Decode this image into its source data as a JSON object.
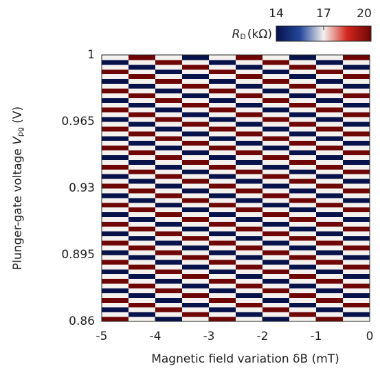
{
  "chart_data": {
    "type": "heatmap",
    "xlabel": "Magnetic field variation δB (mT)",
    "ylabel": {
      "text": "Plunger-gate voltage ",
      "symbol": "V",
      "subscript": "pg",
      "unit": " (V)"
    },
    "colorbar_label": {
      "symbol": "R",
      "subscript": "D",
      "unit": "(kΩ)"
    },
    "xlim": [
      -5,
      0
    ],
    "xticks": [
      -5,
      -4,
      -3,
      -2,
      -1,
      0
    ],
    "ylim": [
      0.86,
      1
    ],
    "yticks": [
      1,
      0.965,
      0.93,
      0.895,
      0.86
    ],
    "zlim": [
      14,
      20
    ],
    "zticks": [
      14,
      17,
      20
    ],
    "colormap": [
      "#07114a",
      "#24479b",
      "#f4f1ee",
      "#d2261c",
      "#6e0606"
    ],
    "x": [
      -4.75,
      -4.25,
      -3.75,
      -3.25,
      -2.75,
      -2.25,
      -1.75,
      -1.25,
      -0.75,
      -0.25
    ],
    "y": [
      0.86125,
      0.86375,
      0.86625,
      0.86875,
      0.87125,
      0.87375,
      0.87625,
      0.87875,
      0.88125,
      0.88375,
      0.88625,
      0.88875,
      0.89125,
      0.89375,
      0.89625,
      0.89875,
      0.90125,
      0.90375,
      0.90625,
      0.90875,
      0.91125,
      0.91375,
      0.91625,
      0.91875,
      0.92125,
      0.92375,
      0.92625,
      0.92875,
      0.93125,
      0.93375,
      0.93625,
      0.93875,
      0.94125,
      0.94375,
      0.94625,
      0.94875,
      0.95125,
      0.95375,
      0.95625,
      0.95875,
      0.96125,
      0.96375,
      0.96625,
      0.96875,
      0.97125,
      0.97375,
      0.97625,
      0.97875,
      0.98125,
      0.98375,
      0.98625,
      0.98875,
      0.99125,
      0.99375,
      0.99625,
      0.99875
    ],
    "z": [
      [
        20,
        17,
        14,
        17,
        20,
        17,
        14,
        17,
        20,
        17
      ],
      [
        17,
        14,
        17,
        20,
        17,
        14,
        17,
        20,
        17,
        14
      ],
      [
        14,
        17,
        20,
        17,
        14,
        17,
        20,
        17,
        14,
        17
      ],
      [
        17,
        20,
        17,
        14,
        17,
        20,
        17,
        14,
        17,
        20
      ],
      [
        20,
        17,
        14,
        17,
        20,
        17,
        14,
        17,
        20,
        17
      ],
      [
        17,
        14,
        17,
        20,
        17,
        14,
        17,
        20,
        17,
        14
      ],
      [
        14,
        17,
        20,
        17,
        14,
        17,
        20,
        17,
        14,
        17
      ],
      [
        17,
        20,
        17,
        14,
        17,
        20,
        17,
        14,
        17,
        20
      ],
      [
        20,
        17,
        14,
        17,
        20,
        17,
        14,
        17,
        20,
        17
      ],
      [
        17,
        14,
        17,
        20,
        17,
        14,
        17,
        20,
        17,
        14
      ],
      [
        14,
        17,
        20,
        17,
        14,
        17,
        20,
        17,
        14,
        17
      ],
      [
        17,
        20,
        17,
        14,
        17,
        20,
        17,
        14,
        17,
        20
      ],
      [
        20,
        17,
        14,
        17,
        20,
        17,
        14,
        17,
        20,
        17
      ],
      [
        17,
        14,
        17,
        20,
        17,
        14,
        17,
        20,
        17,
        14
      ],
      [
        14,
        17,
        20,
        17,
        14,
        17,
        20,
        17,
        14,
        17
      ],
      [
        17,
        20,
        17,
        14,
        17,
        20,
        17,
        14,
        17,
        20
      ],
      [
        20,
        17,
        14,
        17,
        20,
        17,
        14,
        17,
        20,
        17
      ],
      [
        17,
        14,
        17,
        20,
        17,
        14,
        17,
        20,
        17,
        14
      ],
      [
        14,
        17,
        20,
        17,
        14,
        17,
        20,
        17,
        14,
        17
      ],
      [
        17,
        20,
        17,
        14,
        17,
        20,
        17,
        14,
        17,
        20
      ],
      [
        20,
        17,
        14,
        17,
        20,
        17,
        14,
        17,
        20,
        17
      ],
      [
        17,
        14,
        17,
        20,
        17,
        14,
        17,
        20,
        17,
        14
      ],
      [
        14,
        17,
        20,
        17,
        14,
        17,
        20,
        17,
        14,
        17
      ],
      [
        17,
        20,
        17,
        14,
        17,
        20,
        17,
        14,
        17,
        20
      ],
      [
        20,
        17,
        14,
        17,
        20,
        17,
        14,
        17,
        20,
        17
      ],
      [
        17,
        14,
        17,
        20,
        17,
        14,
        17,
        20,
        17,
        14
      ],
      [
        14,
        17,
        20,
        17,
        14,
        17,
        20,
        17,
        14,
        17
      ],
      [
        17,
        20,
        17,
        14,
        17,
        20,
        17,
        14,
        17,
        20
      ],
      [
        20,
        17,
        14,
        17,
        20,
        17,
        14,
        17,
        20,
        17
      ],
      [
        17,
        14,
        17,
        20,
        17,
        14,
        17,
        20,
        17,
        14
      ],
      [
        14,
        17,
        20,
        17,
        14,
        17,
        20,
        17,
        14,
        17
      ],
      [
        17,
        20,
        17,
        14,
        17,
        20,
        17,
        14,
        17,
        20
      ],
      [
        20,
        17,
        14,
        17,
        20,
        17,
        14,
        17,
        20,
        17
      ],
      [
        17,
        14,
        17,
        20,
        17,
        14,
        17,
        20,
        17,
        14
      ],
      [
        14,
        17,
        20,
        17,
        14,
        17,
        20,
        17,
        14,
        17
      ],
      [
        17,
        20,
        17,
        14,
        17,
        20,
        17,
        14,
        17,
        20
      ],
      [
        20,
        17,
        14,
        17,
        20,
        17,
        14,
        17,
        20,
        17
      ],
      [
        17,
        14,
        17,
        20,
        17,
        14,
        17,
        20,
        17,
        14
      ],
      [
        14,
        17,
        20,
        17,
        14,
        17,
        20,
        17,
        14,
        17
      ],
      [
        17,
        20,
        17,
        14,
        17,
        20,
        17,
        14,
        17,
        20
      ],
      [
        20,
        17,
        14,
        17,
        20,
        17,
        14,
        17,
        20,
        17
      ],
      [
        17,
        14,
        17,
        20,
        17,
        14,
        17,
        20,
        17,
        14
      ],
      [
        14,
        17,
        20,
        17,
        14,
        17,
        20,
        17,
        14,
        17
      ],
      [
        17,
        20,
        17,
        14,
        17,
        20,
        17,
        14,
        17,
        20
      ],
      [
        20,
        17,
        14,
        17,
        20,
        17,
        14,
        17,
        20,
        17
      ],
      [
        17,
        14,
        17,
        20,
        17,
        14,
        17,
        20,
        17,
        14
      ],
      [
        14,
        17,
        20,
        17,
        14,
        17,
        20,
        17,
        14,
        17
      ],
      [
        17,
        20,
        17,
        14,
        17,
        20,
        17,
        14,
        17,
        20
      ],
      [
        20,
        17,
        14,
        17,
        20,
        17,
        14,
        17,
        20,
        17
      ],
      [
        17,
        14,
        17,
        20,
        17,
        14,
        17,
        20,
        17,
        14
      ],
      [
        14,
        17,
        20,
        17,
        14,
        17,
        20,
        17,
        14,
        17
      ],
      [
        17,
        20,
        17,
        14,
        17,
        20,
        17,
        14,
        17,
        20
      ],
      [
        20,
        17,
        14,
        17,
        20,
        17,
        14,
        17,
        20,
        17
      ],
      [
        17,
        14,
        17,
        20,
        17,
        14,
        17,
        20,
        17,
        14
      ],
      [
        14,
        17,
        20,
        17,
        14,
        17,
        20,
        17,
        14,
        17
      ],
      [
        17,
        20,
        17,
        14,
        17,
        20,
        17,
        14,
        17,
        20
      ]
    ]
  }
}
